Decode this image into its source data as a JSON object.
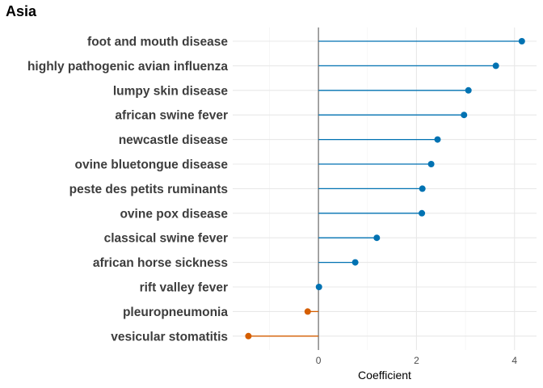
{
  "chart_data": {
    "type": "lollipop",
    "title": "Asia",
    "xlabel": "Coefficient",
    "ylabel": "",
    "xlim": [
      -1.75,
      4.45
    ],
    "x_ticks": [
      0,
      2,
      4
    ],
    "grid": true,
    "legend": "none",
    "colors": {
      "positive": "#0072B2",
      "negative": "#D55E00",
      "zero_line": "#808080"
    },
    "categories": [
      "foot and mouth disease",
      "highly pathogenic avian influenza",
      "lumpy skin disease",
      "african swine fever",
      "newcastle disease",
      "ovine bluetongue disease",
      "peste des petits ruminants",
      "ovine pox disease",
      "classical swine fever",
      "african horse sickness",
      "rift valley fever",
      "pleuropneumonia",
      "vesicular stomatitis"
    ],
    "values": [
      4.15,
      3.62,
      3.06,
      2.97,
      2.43,
      2.3,
      2.12,
      2.11,
      1.19,
      0.75,
      0.01,
      -0.22,
      -1.43
    ]
  }
}
